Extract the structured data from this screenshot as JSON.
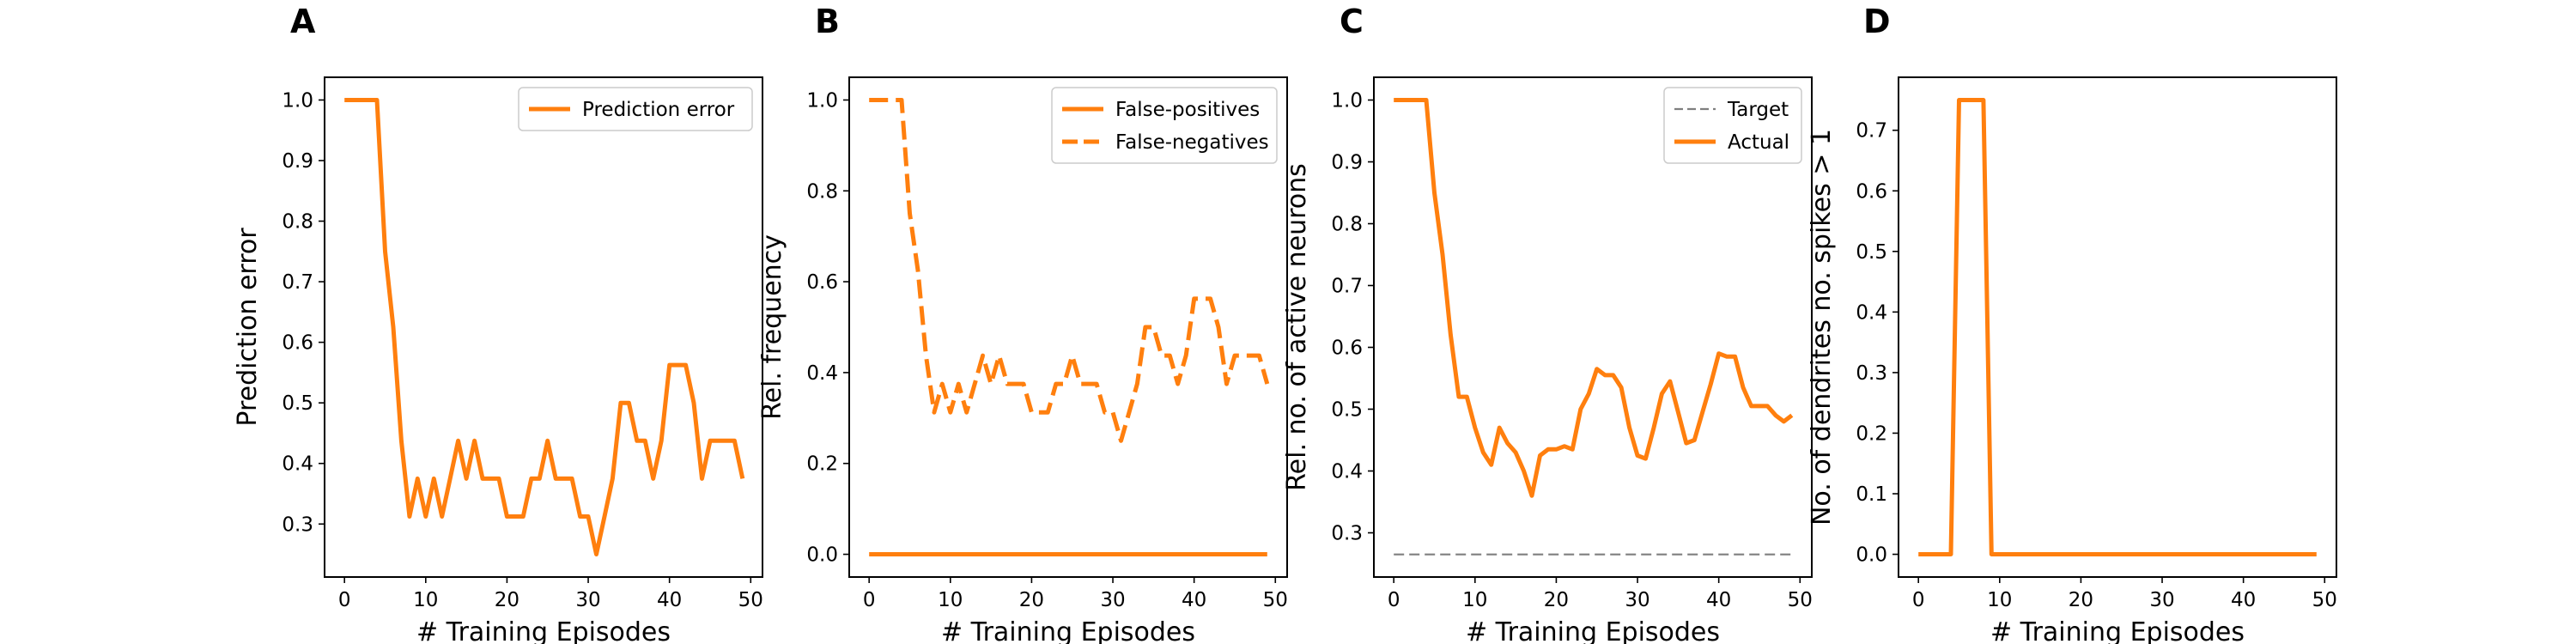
{
  "colors": {
    "orange": "#ff7f0e",
    "gray": "#7f7f7f"
  },
  "chart_data": [
    {
      "panel": "A",
      "type": "line",
      "xlabel": "# Training Episodes",
      "ylabel": "Prediction error",
      "xlim": [
        -2.45,
        51.45
      ],
      "ylim": [
        0.2125,
        1.0375
      ],
      "xticks": [
        0,
        10,
        20,
        30,
        40,
        50
      ],
      "yticks": [
        0.3,
        0.4,
        0.5,
        0.6,
        0.7,
        0.8,
        0.9,
        1.0
      ],
      "ytick_labels": [
        "0.3",
        "0.4",
        "0.5",
        "0.6",
        "0.7",
        "0.8",
        "0.9",
        "1.0"
      ],
      "legend_loc": "upper right",
      "series": [
        {
          "name": "Prediction error",
          "style": "solid",
          "color": "#ff7f0e",
          "x": [
            0,
            1,
            2,
            3,
            4,
            5,
            6,
            7,
            8,
            9,
            10,
            11,
            12,
            13,
            14,
            15,
            16,
            17,
            18,
            19,
            20,
            21,
            22,
            23,
            24,
            25,
            26,
            27,
            28,
            29,
            30,
            31,
            32,
            33,
            34,
            35,
            36,
            37,
            38,
            39,
            40,
            41,
            42,
            43,
            44,
            45,
            46,
            47,
            48,
            49
          ],
          "y": [
            1.0,
            1.0,
            1.0,
            1.0,
            1.0,
            0.75,
            0.625,
            0.4375,
            0.3125,
            0.375,
            0.3125,
            0.375,
            0.3125,
            0.375,
            0.4375,
            0.375,
            0.4375,
            0.375,
            0.375,
            0.375,
            0.3125,
            0.3125,
            0.3125,
            0.375,
            0.375,
            0.4375,
            0.375,
            0.375,
            0.375,
            0.3125,
            0.3125,
            0.25,
            0.3125,
            0.375,
            0.5,
            0.5,
            0.4375,
            0.4375,
            0.375,
            0.4375,
            0.5625,
            0.5625,
            0.5625,
            0.5,
            0.375,
            0.4375,
            0.4375,
            0.4375,
            0.4375,
            0.375
          ]
        }
      ]
    },
    {
      "panel": "B",
      "type": "line",
      "xlabel": "# Training Episodes",
      "ylabel": "Rel. frequency",
      "xlim": [
        -2.45,
        51.45
      ],
      "ylim": [
        -0.05,
        1.05
      ],
      "xticks": [
        0,
        10,
        20,
        30,
        40,
        50
      ],
      "yticks": [
        0.0,
        0.2,
        0.4,
        0.6,
        0.8,
        1.0
      ],
      "ytick_labels": [
        "0.0",
        "0.2",
        "0.4",
        "0.6",
        "0.8",
        "1.0"
      ],
      "legend_loc": "upper right",
      "series": [
        {
          "name": "False-positives",
          "style": "solid",
          "color": "#ff7f0e",
          "x": [
            0,
            1,
            2,
            3,
            4,
            5,
            6,
            7,
            8,
            9,
            10,
            11,
            12,
            13,
            14,
            15,
            16,
            17,
            18,
            19,
            20,
            21,
            22,
            23,
            24,
            25,
            26,
            27,
            28,
            29,
            30,
            31,
            32,
            33,
            34,
            35,
            36,
            37,
            38,
            39,
            40,
            41,
            42,
            43,
            44,
            45,
            46,
            47,
            48,
            49
          ],
          "y": [
            0,
            0,
            0,
            0,
            0,
            0,
            0,
            0,
            0,
            0,
            0,
            0,
            0,
            0,
            0,
            0,
            0,
            0,
            0,
            0,
            0,
            0,
            0,
            0,
            0,
            0,
            0,
            0,
            0,
            0,
            0,
            0,
            0,
            0,
            0,
            0,
            0,
            0,
            0,
            0,
            0,
            0,
            0,
            0,
            0,
            0,
            0,
            0,
            0,
            0
          ]
        },
        {
          "name": "False-negatives",
          "style": "dashed",
          "color": "#ff7f0e",
          "x": [
            0,
            1,
            2,
            3,
            4,
            5,
            6,
            7,
            8,
            9,
            10,
            11,
            12,
            13,
            14,
            15,
            16,
            17,
            18,
            19,
            20,
            21,
            22,
            23,
            24,
            25,
            26,
            27,
            28,
            29,
            30,
            31,
            32,
            33,
            34,
            35,
            36,
            37,
            38,
            39,
            40,
            41,
            42,
            43,
            44,
            45,
            46,
            47,
            48,
            49
          ],
          "y": [
            1.0,
            1.0,
            1.0,
            1.0,
            1.0,
            0.75,
            0.625,
            0.4375,
            0.3125,
            0.375,
            0.3125,
            0.375,
            0.3125,
            0.375,
            0.4375,
            0.375,
            0.4375,
            0.375,
            0.375,
            0.375,
            0.3125,
            0.3125,
            0.3125,
            0.375,
            0.375,
            0.4375,
            0.375,
            0.375,
            0.375,
            0.3125,
            0.3125,
            0.25,
            0.3125,
            0.375,
            0.5,
            0.5,
            0.4375,
            0.4375,
            0.375,
            0.4375,
            0.5625,
            0.5625,
            0.5625,
            0.5,
            0.375,
            0.4375,
            0.4375,
            0.4375,
            0.4375,
            0.375
          ]
        }
      ]
    },
    {
      "panel": "C",
      "type": "line",
      "xlabel": "# Training Episodes",
      "ylabel": "Rel. no. of active neurons",
      "xlim": [
        -2.45,
        51.45
      ],
      "ylim": [
        0.2285,
        1.0368
      ],
      "xticks": [
        0,
        10,
        20,
        30,
        40,
        50
      ],
      "yticks": [
        0.3,
        0.4,
        0.5,
        0.6,
        0.7,
        0.8,
        0.9,
        1.0
      ],
      "ytick_labels": [
        "0.3",
        "0.4",
        "0.5",
        "0.6",
        "0.7",
        "0.8",
        "0.9",
        "1.0"
      ],
      "legend_loc": "upper right",
      "series": [
        {
          "name": "Target",
          "style": "dashed",
          "color": "#7f7f7f",
          "x": [
            0,
            49
          ],
          "y": [
            0.265,
            0.265
          ]
        },
        {
          "name": "Actual",
          "style": "solid",
          "color": "#ff7f0e",
          "x": [
            0,
            1,
            2,
            3,
            4,
            5,
            6,
            7,
            8,
            9,
            10,
            11,
            12,
            13,
            14,
            15,
            16,
            17,
            18,
            19,
            20,
            21,
            22,
            23,
            24,
            25,
            26,
            27,
            28,
            29,
            30,
            31,
            32,
            33,
            34,
            35,
            36,
            37,
            38,
            39,
            40,
            41,
            42,
            43,
            44,
            45,
            46,
            47,
            48,
            49
          ],
          "y": [
            1.0,
            1.0,
            1.0,
            1.0,
            1.0,
            0.85,
            0.75,
            0.62,
            0.52,
            0.52,
            0.47,
            0.43,
            0.41,
            0.47,
            0.445,
            0.43,
            0.4,
            0.36,
            0.425,
            0.435,
            0.435,
            0.44,
            0.435,
            0.5,
            0.525,
            0.565,
            0.555,
            0.555,
            0.535,
            0.47,
            0.425,
            0.42,
            0.47,
            0.525,
            0.545,
            0.495,
            0.445,
            0.45,
            0.495,
            0.54,
            0.59,
            0.585,
            0.585,
            0.535,
            0.505,
            0.505,
            0.505,
            0.49,
            0.48,
            0.49
          ]
        }
      ]
    },
    {
      "panel": "D",
      "type": "line",
      "xlabel": "# Training Episodes",
      "ylabel": "No. of dendrites no. spikes > 1",
      "xlim": [
        -2.45,
        51.45
      ],
      "ylim": [
        -0.0375,
        0.7875
      ],
      "xticks": [
        0,
        10,
        20,
        30,
        40,
        50
      ],
      "yticks": [
        0.0,
        0.1,
        0.2,
        0.3,
        0.4,
        0.5,
        0.6,
        0.7
      ],
      "ytick_labels": [
        "0.0",
        "0.1",
        "0.2",
        "0.3",
        "0.4",
        "0.5",
        "0.6",
        "0.7"
      ],
      "legend_loc": "",
      "series": [
        {
          "name": "",
          "style": "solid",
          "color": "#ff7f0e",
          "x": [
            0,
            1,
            2,
            3,
            4,
            5,
            6,
            7,
            8,
            9,
            10,
            11,
            12,
            13,
            14,
            15,
            16,
            17,
            18,
            19,
            20,
            21,
            22,
            23,
            24,
            25,
            26,
            27,
            28,
            29,
            30,
            31,
            32,
            33,
            34,
            35,
            36,
            37,
            38,
            39,
            40,
            41,
            42,
            43,
            44,
            45,
            46,
            47,
            48,
            49
          ],
          "y": [
            0,
            0,
            0,
            0,
            0,
            0.75,
            0.75,
            0.75,
            0.75,
            0,
            0,
            0,
            0,
            0,
            0,
            0,
            0,
            0,
            0,
            0,
            0,
            0,
            0,
            0,
            0,
            0,
            0,
            0,
            0,
            0,
            0,
            0,
            0,
            0,
            0,
            0,
            0,
            0,
            0,
            0,
            0,
            0,
            0,
            0,
            0,
            0,
            0,
            0,
            0,
            0
          ]
        }
      ]
    }
  ]
}
